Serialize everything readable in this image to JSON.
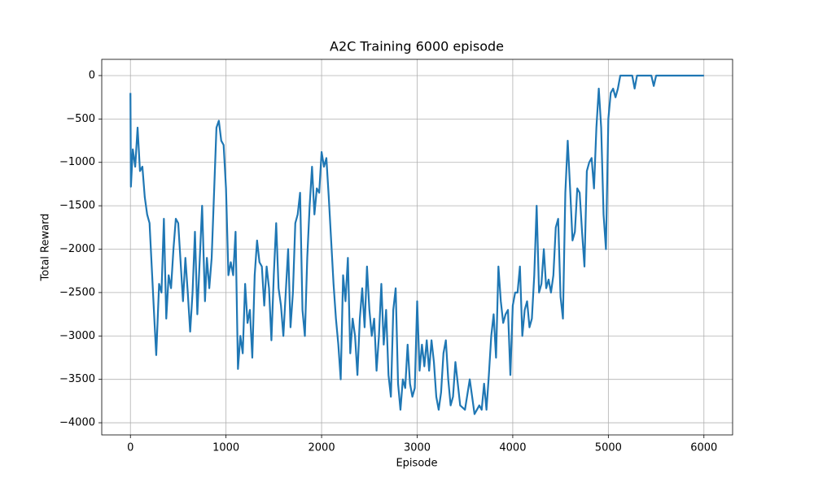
{
  "chart_data": {
    "type": "line",
    "title": "A2C Training 6000 episode",
    "x_label": "Episode",
    "y_label": "Total Reward",
    "x": [
      0,
      5,
      25,
      50,
      75,
      100,
      125,
      150,
      175,
      200,
      250,
      270,
      300,
      325,
      350,
      375,
      400,
      425,
      450,
      475,
      500,
      550,
      575,
      600,
      625,
      650,
      675,
      700,
      750,
      780,
      800,
      825,
      850,
      900,
      925,
      950,
      975,
      1000,
      1025,
      1050,
      1075,
      1100,
      1125,
      1150,
      1175,
      1200,
      1225,
      1250,
      1275,
      1300,
      1325,
      1350,
      1375,
      1400,
      1425,
      1450,
      1475,
      1500,
      1525,
      1550,
      1575,
      1600,
      1625,
      1650,
      1675,
      1700,
      1725,
      1750,
      1775,
      1800,
      1825,
      1850,
      1875,
      1900,
      1925,
      1950,
      1975,
      2000,
      2025,
      2050,
      2075,
      2100,
      2125,
      2150,
      2175,
      2200,
      2225,
      2250,
      2275,
      2300,
      2325,
      2350,
      2375,
      2400,
      2425,
      2450,
      2475,
      2500,
      2525,
      2550,
      2575,
      2600,
      2625,
      2650,
      2675,
      2700,
      2725,
      2750,
      2775,
      2800,
      2825,
      2850,
      2875,
      2900,
      2925,
      2950,
      2975,
      3000,
      3025,
      3050,
      3075,
      3100,
      3125,
      3150,
      3175,
      3200,
      3225,
      3250,
      3275,
      3300,
      3325,
      3350,
      3375,
      3400,
      3450,
      3500,
      3550,
      3575,
      3600,
      3625,
      3650,
      3675,
      3700,
      3725,
      3750,
      3775,
      3800,
      3825,
      3850,
      3875,
      3900,
      3925,
      3950,
      3975,
      4000,
      4025,
      4050,
      4075,
      4100,
      4125,
      4150,
      4175,
      4200,
      4225,
      4250,
      4275,
      4300,
      4325,
      4350,
      4375,
      4400,
      4425,
      4450,
      4475,
      4500,
      4525,
      4550,
      4575,
      4600,
      4625,
      4650,
      4675,
      4700,
      4725,
      4750,
      4775,
      4800,
      4825,
      4850,
      4875,
      4900,
      4925,
      4950,
      4975,
      5000,
      5025,
      5050,
      5075,
      5100,
      5125,
      5150,
      5200,
      5250,
      5275,
      5300,
      5400,
      5450,
      5475,
      5500,
      6000
    ],
    "series": [
      {
        "name": "Total Reward",
        "color": "#1f77b4",
        "values": [
          -200,
          -1280,
          -850,
          -1050,
          -600,
          -1100,
          -1050,
          -1400,
          -1600,
          -1700,
          -2800,
          -3220,
          -2400,
          -2500,
          -1650,
          -2800,
          -2300,
          -2450,
          -2000,
          -1650,
          -1700,
          -2600,
          -2100,
          -2500,
          -2950,
          -2500,
          -1800,
          -2750,
          -1500,
          -2600,
          -2100,
          -2450,
          -2100,
          -600,
          -520,
          -750,
          -800,
          -1300,
          -2300,
          -2150,
          -2300,
          -1800,
          -3380,
          -3000,
          -3200,
          -2400,
          -2850,
          -2700,
          -3250,
          -2300,
          -1900,
          -2150,
          -2200,
          -2650,
          -2200,
          -2450,
          -3050,
          -2300,
          -1700,
          -2450,
          -2650,
          -3000,
          -2500,
          -2000,
          -2900,
          -2500,
          -1700,
          -1600,
          -1350,
          -2700,
          -3000,
          -2100,
          -1500,
          -1050,
          -1600,
          -1300,
          -1350,
          -880,
          -1050,
          -950,
          -1400,
          -1900,
          -2400,
          -2800,
          -3100,
          -3500,
          -2300,
          -2600,
          -2100,
          -3200,
          -2800,
          -3000,
          -3450,
          -2800,
          -2450,
          -2900,
          -2200,
          -2700,
          -3000,
          -2800,
          -3400,
          -3000,
          -2400,
          -3100,
          -2700,
          -3450,
          -3700,
          -2700,
          -2450,
          -3550,
          -3850,
          -3500,
          -3600,
          -3100,
          -3550,
          -3700,
          -3600,
          -2600,
          -3400,
          -3100,
          -3350,
          -3050,
          -3400,
          -3050,
          -3300,
          -3700,
          -3850,
          -3650,
          -3200,
          -3050,
          -3500,
          -3800,
          -3700,
          -3300,
          -3800,
          -3850,
          -3500,
          -3700,
          -3900,
          -3850,
          -3800,
          -3850,
          -3550,
          -3850,
          -3450,
          -3000,
          -2750,
          -3250,
          -2200,
          -2600,
          -2850,
          -2750,
          -2700,
          -3450,
          -2650,
          -2500,
          -2500,
          -2200,
          -3000,
          -2700,
          -2600,
          -2900,
          -2800,
          -2300,
          -1500,
          -2500,
          -2400,
          -2000,
          -2450,
          -2350,
          -2500,
          -2300,
          -1750,
          -1650,
          -2550,
          -2800,
          -1350,
          -750,
          -1300,
          -1900,
          -1800,
          -1300,
          -1350,
          -1800,
          -2200,
          -1100,
          -1000,
          -950,
          -1300,
          -600,
          -150,
          -600,
          -1600,
          -2000,
          -500,
          -200,
          -150,
          -250,
          -150,
          0,
          0,
          0,
          0,
          -150,
          0,
          0,
          0,
          -120,
          0,
          0
        ]
      }
    ],
    "xlim": [
      -300,
      6300
    ],
    "ylim": [
      -4140,
      187
    ],
    "xticks": [
      0,
      1000,
      2000,
      3000,
      4000,
      5000,
      6000
    ],
    "yticks": [
      {
        "value": -4000,
        "label": "−4000"
      },
      {
        "value": -3500,
        "label": "−3500"
      },
      {
        "value": -3000,
        "label": "−3000"
      },
      {
        "value": -2500,
        "label": "−2500"
      },
      {
        "value": -2000,
        "label": "−2000"
      },
      {
        "value": -1500,
        "label": "−1500"
      },
      {
        "value": -1000,
        "label": "−1000"
      },
      {
        "value": -500,
        "label": "−500"
      },
      0
    ],
    "grid": true
  }
}
